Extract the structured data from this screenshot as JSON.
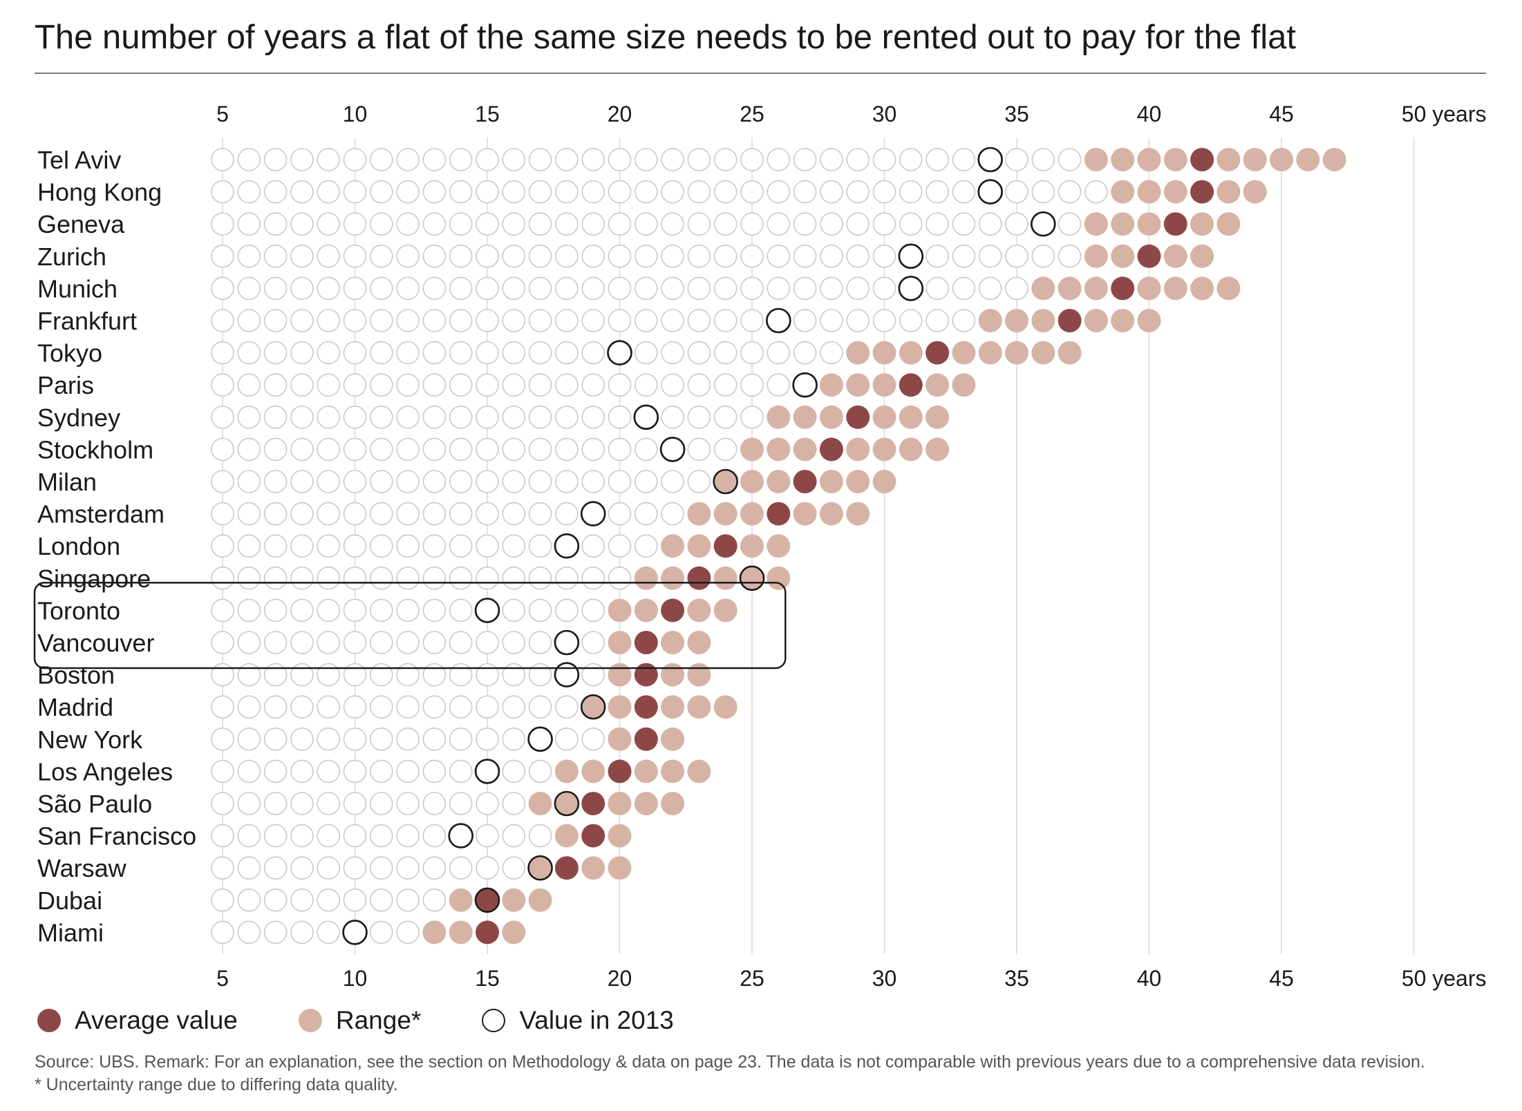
{
  "title": "The number of years a flat of the same size needs to be rented out to pay for the flat",
  "colors": {
    "average": "#8e4747",
    "range": "#d7b3a5",
    "empty_stroke": "#c9c9c9",
    "marker_2013": "#1a1a1a",
    "gridline": "#d9d9d9",
    "highlight_box": "#1a1a1a"
  },
  "chart_data": {
    "type": "dot-matrix",
    "x_range": [
      5,
      47
    ],
    "x_ticks": [
      {
        "value": 5,
        "label": "5"
      },
      {
        "value": 10,
        "label": "10"
      },
      {
        "value": 15,
        "label": "15"
      },
      {
        "value": 20,
        "label": "20"
      },
      {
        "value": 25,
        "label": "25"
      },
      {
        "value": 30,
        "label": "30"
      },
      {
        "value": 35,
        "label": "35"
      },
      {
        "value": 40,
        "label": "40"
      },
      {
        "value": 45,
        "label": "45"
      },
      {
        "value": 50,
        "label": "50 years"
      }
    ],
    "highlighted_cities": [
      "Toronto",
      "Vancouver"
    ],
    "cities": [
      {
        "name": "Tel Aviv",
        "range": [
          38,
          47
        ],
        "average": 42,
        "value_2013": 34
      },
      {
        "name": "Hong Kong",
        "range": [
          39,
          44
        ],
        "average": 42,
        "value_2013": 34
      },
      {
        "name": "Geneva",
        "range": [
          38,
          43
        ],
        "average": 41,
        "value_2013": 36
      },
      {
        "name": "Zurich",
        "range": [
          38,
          42
        ],
        "average": 40,
        "value_2013": 31
      },
      {
        "name": "Munich",
        "range": [
          36,
          43
        ],
        "average": 39,
        "value_2013": 31
      },
      {
        "name": "Frankfurt",
        "range": [
          34,
          40
        ],
        "average": 37,
        "value_2013": 26
      },
      {
        "name": "Tokyo",
        "range": [
          29,
          37
        ],
        "average": 32,
        "value_2013": 20
      },
      {
        "name": "Paris",
        "range": [
          28,
          33
        ],
        "average": 31,
        "value_2013": 27
      },
      {
        "name": "Sydney",
        "range": [
          26,
          32
        ],
        "average": 29,
        "value_2013": 21
      },
      {
        "name": "Stockholm",
        "range": [
          25,
          32
        ],
        "average": 28,
        "value_2013": 22
      },
      {
        "name": "Milan",
        "range": [
          24,
          30
        ],
        "average": 27,
        "value_2013": 24
      },
      {
        "name": "Amsterdam",
        "range": [
          23,
          29
        ],
        "average": 26,
        "value_2013": 19
      },
      {
        "name": "London",
        "range": [
          22,
          26
        ],
        "average": 24,
        "value_2013": 18
      },
      {
        "name": "Singapore",
        "range": [
          21,
          26
        ],
        "average": 23,
        "value_2013": 25
      },
      {
        "name": "Toronto",
        "range": [
          20,
          24
        ],
        "average": 22,
        "value_2013": 15
      },
      {
        "name": "Vancouver",
        "range": [
          20,
          23
        ],
        "average": 21,
        "value_2013": 18
      },
      {
        "name": "Boston",
        "range": [
          20,
          23
        ],
        "average": 21,
        "value_2013": 18
      },
      {
        "name": "Madrid",
        "range": [
          19,
          24
        ],
        "average": 21,
        "value_2013": 19
      },
      {
        "name": "New York",
        "range": [
          20,
          22
        ],
        "average": 21,
        "value_2013": 17
      },
      {
        "name": "Los Angeles",
        "range": [
          18,
          23
        ],
        "average": 20,
        "value_2013": 15
      },
      {
        "name": "São Paulo",
        "range": [
          17,
          22
        ],
        "average": 19,
        "value_2013": 18
      },
      {
        "name": "San Francisco",
        "range": [
          18,
          20
        ],
        "average": 19,
        "value_2013": 14
      },
      {
        "name": "Warsaw",
        "range": [
          17,
          20
        ],
        "average": 18,
        "value_2013": 17
      },
      {
        "name": "Dubai",
        "range": [
          14,
          17
        ],
        "average": 15,
        "value_2013": 15
      },
      {
        "name": "Miami",
        "range": [
          13,
          16
        ],
        "average": 15,
        "value_2013": 10
      }
    ]
  },
  "legend": {
    "average": "Average value",
    "range": "Range*",
    "value_2013": "Value in 2013"
  },
  "source": {
    "line1": "Source: UBS. Remark: For an explanation, see the section on Methodology & data on page 23. The data is not comparable with previous years due to a comprehensive data revision.",
    "line2": "* Uncertainty range due to differing data quality."
  }
}
